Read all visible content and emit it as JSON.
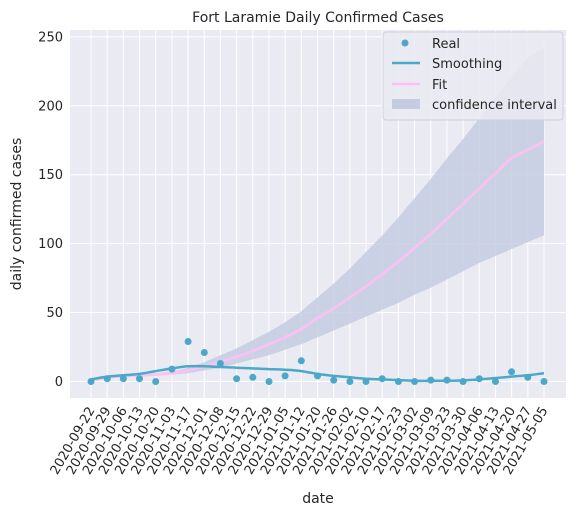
{
  "chart_data": {
    "type": "line",
    "title": "Fort Laramie Daily Confirmed Cases",
    "xlabel": "date",
    "ylabel": "daily confirmed cases",
    "ylim": [
      -12,
      255
    ],
    "yticks": [
      0,
      50,
      100,
      150,
      200,
      250
    ],
    "grid": true,
    "legend_position": "top-right",
    "colors": {
      "background": "#eaeaf2",
      "grid": "#ffffff",
      "real": "#4ba8c8",
      "smoothing": "#4ba8c8",
      "fit": "#ffbff5",
      "ci": "#c5cce2"
    },
    "x": [
      "2020-09-22",
      "2020-09-29",
      "2020-10-06",
      "2020-10-13",
      "2020-10-20",
      "2020-11-03",
      "2020-11-17",
      "2020-12-01",
      "2020-12-08",
      "2020-12-15",
      "2020-12-22",
      "2020-12-29",
      "2021-01-05",
      "2021-01-12",
      "2021-01-20",
      "2021-01-26",
      "2021-02-02",
      "2021-02-10",
      "2021-02-17",
      "2021-02-23",
      "2021-03-02",
      "2021-03-09",
      "2021-03-23",
      "2021-03-30",
      "2021-04-06",
      "2021-04-13",
      "2021-04-20",
      "2021-04-27",
      "2021-05-05"
    ],
    "series": [
      {
        "name": "Real",
        "kind": "points",
        "values": [
          0,
          2,
          2,
          2,
          0,
          9,
          29,
          21,
          13,
          2,
          3,
          0,
          4,
          15,
          4,
          1,
          0,
          0,
          2,
          0,
          0,
          1,
          1,
          0,
          2,
          0,
          7,
          3,
          0
        ]
      },
      {
        "name": "Smoothing",
        "kind": "line",
        "values": [
          1.5,
          3.5,
          4.5,
          5.5,
          7.5,
          9.5,
          11,
          11,
          10.5,
          10,
          9.5,
          9,
          8.5,
          7.5,
          5.5,
          4,
          3,
          2,
          1.5,
          1,
          0.5,
          0.5,
          0.5,
          0.8,
          1.5,
          2.5,
          3.5,
          4.5,
          6
        ]
      },
      {
        "name": "Fit",
        "kind": "line",
        "values": [
          1,
          3,
          4,
          4.5,
          5,
          6,
          8,
          11,
          14,
          18,
          22,
          27,
          32,
          38,
          46,
          53,
          61,
          69,
          78,
          87,
          97,
          107,
          118,
          129,
          140,
          151,
          162,
          168,
          174
        ]
      },
      {
        "name": "confidence interval",
        "kind": "band",
        "lower": [
          0,
          2,
          3,
          3.5,
          4,
          5,
          6,
          8,
          10,
          13,
          16,
          19,
          23,
          27,
          32,
          37,
          42,
          47,
          52,
          57,
          63,
          68,
          74,
          80,
          86,
          91,
          96,
          101,
          106
        ],
        "upper": [
          2,
          4,
          5,
          5.5,
          6,
          7,
          10,
          14,
          19,
          24,
          30,
          36,
          43,
          51,
          61,
          71,
          82,
          94,
          106,
          119,
          133,
          147,
          162,
          176,
          191,
          206,
          221,
          235,
          242
        ]
      }
    ]
  }
}
